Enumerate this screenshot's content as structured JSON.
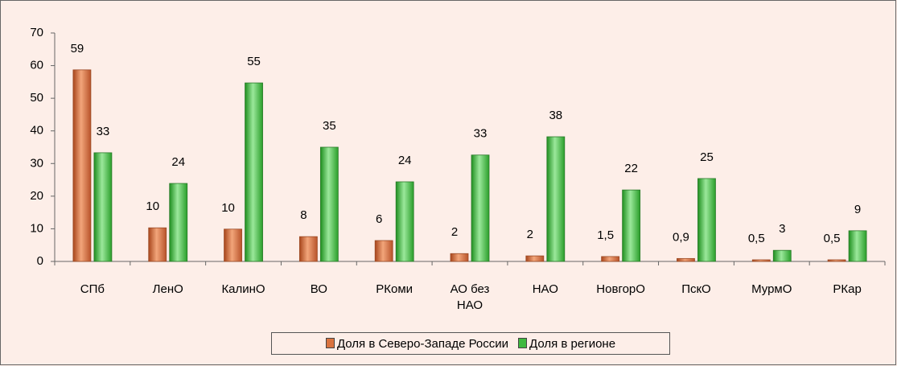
{
  "chart_data": {
    "type": "bar",
    "categories": [
      "СПб",
      "ЛенО",
      "КалинО",
      "ВО",
      "РКоми",
      "АО без НАО",
      "НАО",
      "НовгорО",
      "ПскО",
      "МурмО",
      "РКар"
    ],
    "series": [
      {
        "name": "Доля в Северо-Западе России",
        "color": "#d9733f",
        "values": [
          58.7,
          10.3,
          9.9,
          7.6,
          6.4,
          2.4,
          1.7,
          1.5,
          0.9,
          0.5,
          0.5
        ],
        "value_labels": [
          "59",
          "10",
          "10",
          "8",
          "6",
          "2",
          "2",
          "1,5",
          "0,9",
          "0,5",
          "0,5"
        ]
      },
      {
        "name": "Доля в регионе",
        "color": "#3fb83f",
        "values": [
          33.3,
          23.9,
          54.7,
          35,
          24.4,
          32.6,
          38.2,
          21.9,
          25.4,
          3.4,
          9.4
        ],
        "value_labels": [
          "33",
          "24",
          "55",
          "35",
          "24",
          "33",
          "38",
          "22",
          "25",
          "3",
          "9"
        ]
      }
    ],
    "ylim": [
      0,
      70
    ],
    "yticks": [
      0,
      10,
      20,
      30,
      40,
      50,
      60,
      70
    ]
  }
}
